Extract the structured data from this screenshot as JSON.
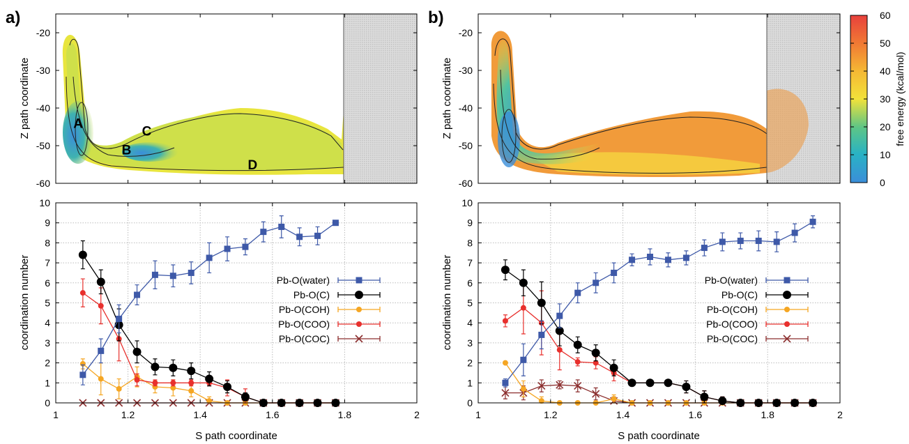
{
  "panels": {
    "a": {
      "label": "a)"
    },
    "b": {
      "label": "b)"
    }
  },
  "colorbar": {
    "label": "free energy (kcal/mol)",
    "ticks": [
      0,
      10,
      20,
      30,
      40,
      50,
      60
    ]
  },
  "chart_data": [
    {
      "id": "a-top",
      "type": "heatmap",
      "ylabel": "Z path coordinate",
      "xlim": [
        1,
        2
      ],
      "ylim": [
        -60,
        -15
      ],
      "yticks": [
        -20,
        -30,
        -40,
        -50,
        -60
      ],
      "shaded_region_x": [
        1.8,
        2
      ],
      "grid": false,
      "annotations": [
        {
          "text": "A",
          "x": 1.062,
          "y": -44
        },
        {
          "text": "B",
          "x": 1.196,
          "y": -51
        },
        {
          "text": "C",
          "x": 1.252,
          "y": -46
        },
        {
          "text": "D",
          "x": 1.545,
          "y": -55
        }
      ]
    },
    {
      "id": "b-top",
      "type": "heatmap",
      "ylabel": "Z path coordinate",
      "xlim": [
        1,
        2
      ],
      "ylim": [
        -60,
        -15
      ],
      "yticks": [
        -20,
        -30,
        -40,
        -50,
        -60
      ],
      "shaded_region_x": [
        1.8,
        2
      ],
      "grid": false,
      "colorbar": true
    },
    {
      "id": "a-bottom",
      "type": "line",
      "xlabel": "S path coordinate",
      "ylabel": "coordination number",
      "xlim": [
        1,
        2
      ],
      "ylim": [
        0,
        10
      ],
      "xticks": [
        1,
        1.2,
        1.4,
        1.6,
        1.8,
        2
      ],
      "yticks": [
        0,
        1,
        2,
        3,
        4,
        5,
        6,
        7,
        8,
        9,
        10
      ],
      "grid": true,
      "legend_position": "right",
      "series": [
        {
          "name": "Pb-O(water)",
          "color": "#3e59a8",
          "marker": "square",
          "x": [
            1.075,
            1.125,
            1.175,
            1.225,
            1.275,
            1.325,
            1.375,
            1.425,
            1.475,
            1.525,
            1.575,
            1.625,
            1.675,
            1.725,
            1.775
          ],
          "y": [
            1.4,
            2.6,
            4.2,
            5.4,
            6.4,
            6.35,
            6.5,
            7.25,
            7.7,
            7.8,
            8.55,
            8.8,
            8.3,
            8.35,
            9.0
          ],
          "err": [
            0.5,
            0.6,
            0.7,
            0.5,
            0.7,
            0.55,
            0.55,
            0.75,
            0.6,
            0.4,
            0.5,
            0.55,
            0.45,
            0.45,
            0
          ]
        },
        {
          "name": "Pb-O(C)",
          "color": "#000000",
          "marker": "circle",
          "x": [
            1.075,
            1.125,
            1.175,
            1.225,
            1.275,
            1.325,
            1.375,
            1.425,
            1.475,
            1.525,
            1.575,
            1.625,
            1.675,
            1.725,
            1.775
          ],
          "y": [
            7.4,
            6.05,
            3.9,
            2.55,
            1.8,
            1.75,
            1.6,
            1.2,
            0.8,
            0.3,
            0.0,
            0.0,
            0.0,
            0.0,
            0.0
          ],
          "err": [
            0.7,
            0.6,
            0.8,
            0.55,
            0.4,
            0.4,
            0.4,
            0.35,
            0.3,
            0.2,
            0,
            0,
            0,
            0,
            0
          ]
        },
        {
          "name": "Pb-O(COH)",
          "color": "#f5a623",
          "marker": "circle",
          "x": [
            1.075,
            1.125,
            1.175,
            1.225,
            1.275,
            1.325,
            1.375,
            1.425,
            1.475,
            1.525,
            1.575,
            1.625,
            1.675,
            1.725,
            1.775
          ],
          "y": [
            1.95,
            1.2,
            0.7,
            1.3,
            0.8,
            0.75,
            0.6,
            0.1,
            0.0,
            0.0,
            0.0,
            0.0,
            0.0,
            0.0,
            0.0
          ],
          "err": [
            0.25,
            0.8,
            0.5,
            0.5,
            0.3,
            0.4,
            0.3,
            0.2,
            0,
            0,
            0,
            0,
            0,
            0,
            0
          ]
        },
        {
          "name": "Pb-O(COO)",
          "color": "#e8302d",
          "marker": "circle",
          "x": [
            1.075,
            1.125,
            1.175,
            1.225,
            1.275,
            1.325,
            1.375,
            1.425,
            1.475,
            1.525,
            1.575,
            1.625,
            1.675,
            1.725,
            1.775
          ],
          "y": [
            5.5,
            4.85,
            3.2,
            1.15,
            1.0,
            1.0,
            1.0,
            1.0,
            0.75,
            0.3,
            0.0,
            0.0,
            0.0,
            0.0,
            0.0
          ],
          "err": [
            0.7,
            0.9,
            1.1,
            0.3,
            0.15,
            0.15,
            0.15,
            0.15,
            0.4,
            0.4,
            0,
            0,
            0,
            0,
            0
          ]
        },
        {
          "name": "Pb-O(COC)",
          "color": "#8b2e2e",
          "marker": "x",
          "x": [
            1.075,
            1.125,
            1.175,
            1.225,
            1.275,
            1.325,
            1.375,
            1.425,
            1.475,
            1.525,
            1.575,
            1.625,
            1.675,
            1.725,
            1.775
          ],
          "y": [
            0,
            0,
            0,
            0,
            0,
            0,
            0,
            0,
            0,
            0,
            0,
            0,
            0,
            0,
            0
          ],
          "err": [
            0,
            0,
            0,
            0,
            0,
            0,
            0,
            0,
            0,
            0,
            0,
            0,
            0,
            0,
            0
          ]
        }
      ]
    },
    {
      "id": "b-bottom",
      "type": "line",
      "xlabel": "S path coordinate",
      "ylabel": "coordination number",
      "xlim": [
        1,
        2
      ],
      "ylim": [
        0,
        10
      ],
      "xticks": [
        1,
        1.2,
        1.4,
        1.6,
        1.8,
        2
      ],
      "yticks": [
        0,
        1,
        2,
        3,
        4,
        5,
        6,
        7,
        8,
        9,
        10
      ],
      "grid": true,
      "legend_position": "right",
      "series": [
        {
          "name": "Pb-O(water)",
          "color": "#3e59a8",
          "marker": "square",
          "x": [
            1.075,
            1.125,
            1.175,
            1.225,
            1.275,
            1.325,
            1.375,
            1.425,
            1.475,
            1.525,
            1.575,
            1.625,
            1.675,
            1.725,
            1.775,
            1.825,
            1.875,
            1.925
          ],
          "y": [
            1.0,
            2.15,
            3.4,
            4.35,
            5.5,
            6.0,
            6.5,
            7.15,
            7.3,
            7.15,
            7.25,
            7.75,
            8.05,
            8.1,
            8.1,
            8.05,
            8.5,
            9.05
          ],
          "err": [
            0.2,
            0.8,
            0.7,
            0.6,
            0.5,
            0.5,
            0.5,
            0.3,
            0.4,
            0.35,
            0.35,
            0.4,
            0.45,
            0.4,
            0.5,
            0.5,
            0.45,
            0.3
          ]
        },
        {
          "name": "Pb-O(C)",
          "color": "#000000",
          "marker": "circle",
          "x": [
            1.075,
            1.125,
            1.175,
            1.225,
            1.275,
            1.325,
            1.375,
            1.425,
            1.475,
            1.525,
            1.575,
            1.625,
            1.675,
            1.725,
            1.775,
            1.825,
            1.875,
            1.925
          ],
          "y": [
            6.65,
            6.0,
            5.0,
            3.6,
            2.9,
            2.5,
            1.75,
            1.0,
            1.0,
            1.0,
            0.8,
            0.3,
            0.1,
            0.0,
            0.0,
            0.0,
            0.0,
            0.0
          ],
          "err": [
            0.5,
            0.65,
            1.05,
            0.75,
            0.4,
            0.4,
            0.4,
            0.1,
            0.1,
            0.1,
            0.3,
            0.3,
            0.2,
            0,
            0,
            0,
            0,
            0
          ]
        },
        {
          "name": "Pb-O(COH)",
          "color": "#f5a623",
          "marker": "circle",
          "x": [
            1.075,
            1.125,
            1.175,
            1.225,
            1.275,
            1.325,
            1.375,
            1.425,
            1.475,
            1.525,
            1.575,
            1.625,
            1.675,
            1.725,
            1.775,
            1.825,
            1.875,
            1.925
          ],
          "y": [
            2.0,
            0.7,
            0.1,
            0.0,
            0.0,
            0.0,
            0.2,
            0.0,
            0.0,
            0.0,
            0.0,
            0.0,
            0.0,
            0.0,
            0.0,
            0.0,
            0.0,
            0.0
          ],
          "err": [
            0,
            0.4,
            0.2,
            0,
            0,
            0,
            0.2,
            0,
            0,
            0,
            0,
            0,
            0,
            0,
            0,
            0,
            0,
            0
          ]
        },
        {
          "name": "Pb-O(COO)",
          "color": "#e8302d",
          "marker": "circle",
          "x": [
            1.075,
            1.125,
            1.175,
            1.225,
            1.275,
            1.325,
            1.375,
            1.425,
            1.475,
            1.525,
            1.575,
            1.625,
            1.675,
            1.725,
            1.775,
            1.825,
            1.875,
            1.925
          ],
          "y": [
            4.1,
            4.75,
            4.0,
            2.65,
            2.05,
            2.0,
            1.5,
            1.0,
            1.0,
            1.0,
            0.8,
            0.3,
            0.1,
            0.0,
            0.0,
            0.0,
            0.0,
            0.0
          ],
          "err": [
            0.3,
            1.3,
            1.6,
            1.0,
            0.2,
            0.3,
            0.4,
            0.1,
            0.1,
            0.1,
            0.3,
            0.3,
            0.2,
            0,
            0,
            0,
            0,
            0
          ]
        },
        {
          "name": "Pb-O(COC)",
          "color": "#8b2e2e",
          "marker": "x",
          "x": [
            1.075,
            1.125,
            1.175,
            1.225,
            1.275,
            1.325,
            1.375,
            1.425,
            1.475,
            1.525,
            1.575,
            1.625,
            1.675,
            1.725,
            1.775,
            1.825,
            1.875,
            1.925
          ],
          "y": [
            0.5,
            0.5,
            0.85,
            0.9,
            0.85,
            0.45,
            0.1,
            0.0,
            0.0,
            0.0,
            0.0,
            0.0,
            0.0,
            0.0,
            0.0,
            0.0,
            0.0,
            0.0
          ],
          "err": [
            0.3,
            0.35,
            0.3,
            0.2,
            0.3,
            0.3,
            0.2,
            0,
            0,
            0,
            0,
            0,
            0,
            0,
            0,
            0,
            0,
            0
          ]
        }
      ]
    }
  ]
}
